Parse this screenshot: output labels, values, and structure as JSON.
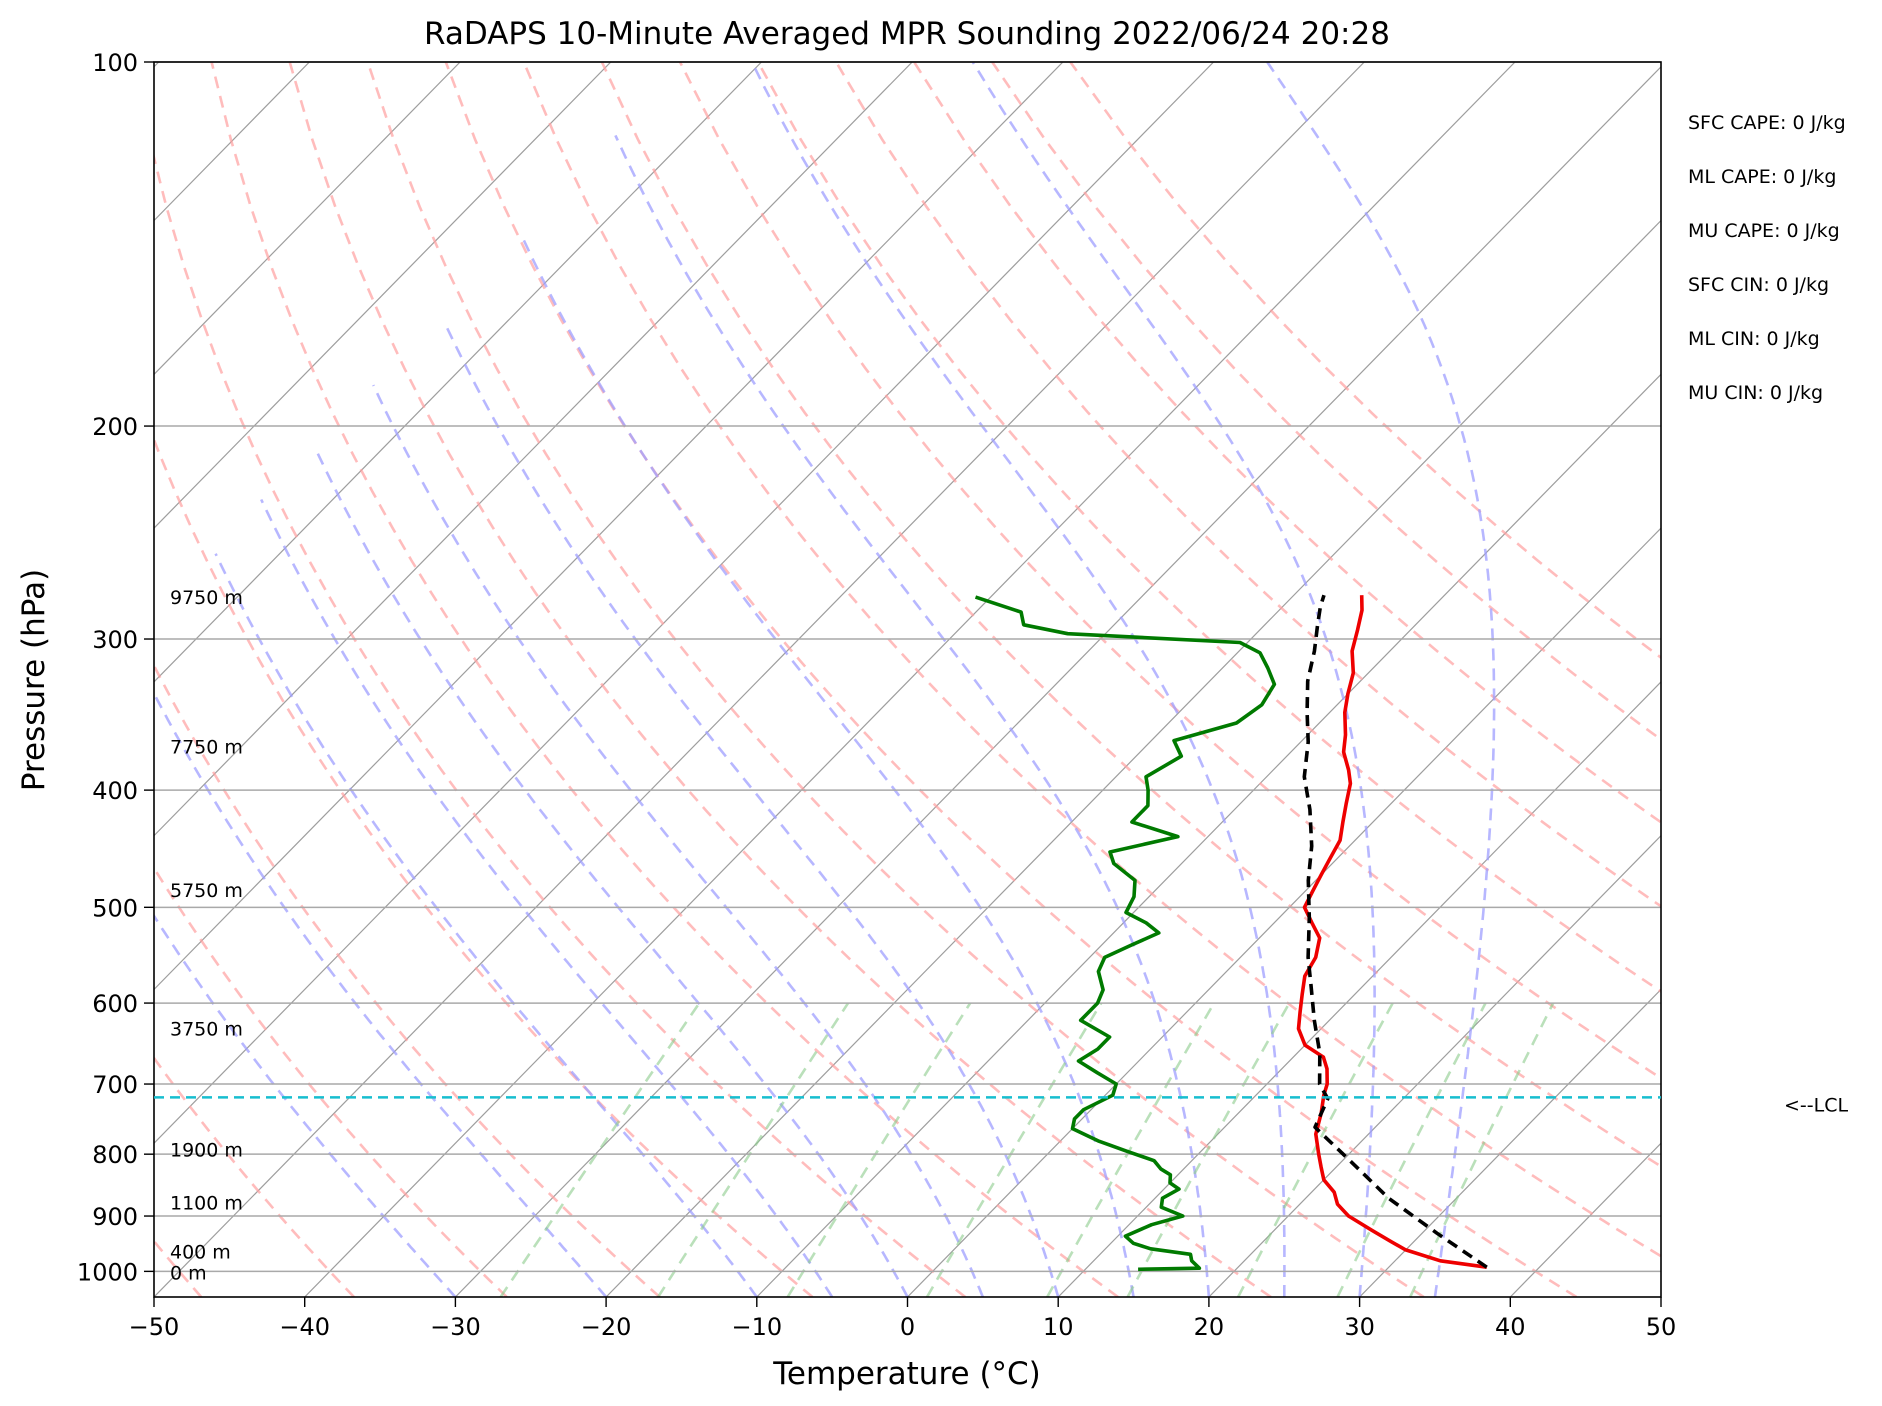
{
  "chart_data": {
    "type": "line",
    "subtype": "skew-t log-p sounding",
    "title": "RaDAPS 10-Minute Averaged MPR Sounding 2022/06/24 20:28",
    "xlabel": "Temperature (°C)",
    "ylabel": "Pressure (hPa)",
    "xlim": [
      -50,
      50
    ],
    "ylim": [
      1050,
      100
    ],
    "y_scale": "log",
    "x_ticks": [
      -50,
      -40,
      -30,
      -20,
      -10,
      0,
      10,
      20,
      30,
      40,
      50
    ],
    "x_tick_labels": [
      "−50",
      "−40",
      "−30",
      "−20",
      "−10",
      "0",
      "10",
      "20",
      "30",
      "40",
      "50"
    ],
    "y_ticks": [
      100,
      200,
      300,
      400,
      500,
      600,
      700,
      800,
      900,
      1000
    ],
    "y_tick_labels": [
      "100",
      "200",
      "300",
      "400",
      "500",
      "600",
      "700",
      "800",
      "900",
      "1000"
    ],
    "grid": true,
    "series": [
      {
        "role": "temperature",
        "color": "#ee0000",
        "points": [
          [
            36.5,
            992
          ],
          [
            33.0,
            980
          ],
          [
            30.0,
            960
          ],
          [
            28.5,
            945
          ],
          [
            26.5,
            925
          ],
          [
            24.0,
            900
          ],
          [
            22.5,
            880
          ],
          [
            21.5,
            860
          ],
          [
            20.0,
            840
          ],
          [
            19.0,
            820
          ],
          [
            18.0,
            800
          ],
          [
            16.5,
            770
          ],
          [
            15.5,
            740
          ],
          [
            14.5,
            715
          ],
          [
            14.0,
            700
          ],
          [
            13.0,
            680
          ],
          [
            12.0,
            665
          ],
          [
            10.0,
            650
          ],
          [
            8.5,
            630
          ],
          [
            7.5,
            610
          ],
          [
            6.5,
            590
          ],
          [
            5.5,
            570
          ],
          [
            5.0,
            550
          ],
          [
            4.0,
            530
          ],
          [
            2.5,
            515
          ],
          [
            1.0,
            500
          ],
          [
            0.5,
            485
          ],
          [
            0.0,
            470
          ],
          [
            -0.5,
            455
          ],
          [
            -1.0,
            440
          ],
          [
            -2.0,
            425
          ],
          [
            -3.0,
            410
          ],
          [
            -4.0,
            395
          ],
          [
            -5.0,
            385
          ],
          [
            -6.5,
            372
          ],
          [
            -7.5,
            360
          ],
          [
            -9.0,
            345
          ],
          [
            -10.0,
            333
          ],
          [
            -11.0,
            320
          ],
          [
            -12.5,
            307
          ],
          [
            -13.5,
            295
          ],
          [
            -14.5,
            284
          ],
          [
            -15.5,
            276
          ]
        ]
      },
      {
        "role": "dewpoint",
        "color": "#007a00",
        "points": [
          [
            13.5,
            996
          ],
          [
            17.5,
            994
          ],
          [
            16.5,
            980
          ],
          [
            16.0,
            968
          ],
          [
            13.0,
            958
          ],
          [
            11.5,
            948
          ],
          [
            10.5,
            935
          ],
          [
            11.5,
            915
          ],
          [
            13.0,
            900
          ],
          [
            11.0,
            885
          ],
          [
            10.5,
            870
          ],
          [
            11.0,
            855
          ],
          [
            10.0,
            845
          ],
          [
            9.5,
            832
          ],
          [
            8.5,
            823
          ],
          [
            7.5,
            810
          ],
          [
            5.0,
            795
          ],
          [
            2.5,
            780
          ],
          [
            0.0,
            762
          ],
          [
            -0.5,
            748
          ],
          [
            -0.5,
            735
          ],
          [
            0.5,
            715
          ],
          [
            0.0,
            700
          ],
          [
            -2.0,
            685
          ],
          [
            -4.0,
            670
          ],
          [
            -3.5,
            655
          ],
          [
            -3.5,
            640
          ],
          [
            -6.5,
            620
          ],
          [
            -6.5,
            600
          ],
          [
            -7.0,
            585
          ],
          [
            -8.5,
            565
          ],
          [
            -9.0,
            550
          ],
          [
            -8.0,
            537
          ],
          [
            -7.0,
            525
          ],
          [
            -8.5,
            515
          ],
          [
            -10.5,
            505
          ],
          [
            -11.0,
            490
          ],
          [
            -12.0,
            475
          ],
          [
            -14.5,
            460
          ],
          [
            -15.5,
            450
          ],
          [
            -12.0,
            437
          ],
          [
            -16.0,
            425
          ],
          [
            -16.0,
            412
          ],
          [
            -17.0,
            400
          ],
          [
            -18.0,
            390
          ],
          [
            -17.0,
            375
          ],
          [
            -18.5,
            364
          ],
          [
            -15.5,
            352
          ],
          [
            -15.0,
            340
          ],
          [
            -15.5,
            327
          ],
          [
            -17.0,
            317
          ],
          [
            -18.5,
            308
          ],
          [
            -20.5,
            302
          ],
          [
            -32.5,
            297
          ],
          [
            -36.0,
            292
          ],
          [
            -37.0,
            285
          ],
          [
            -41.0,
            277
          ]
        ]
      },
      {
        "role": "parcel-profile",
        "color": "#000000",
        "dashed": true,
        "points": [
          [
            36.5,
            992
          ],
          [
            31.0,
            930
          ],
          [
            25.5,
            870
          ],
          [
            20.5,
            810
          ],
          [
            16.0,
            760
          ],
          [
            15.0,
            720
          ],
          [
            13.5,
            700
          ],
          [
            11.5,
            660
          ],
          [
            9.0,
            620
          ],
          [
            6.5,
            580
          ],
          [
            4.5,
            550
          ],
          [
            2.0,
            510
          ],
          [
            -0.5,
            475
          ],
          [
            -2.5,
            445
          ],
          [
            -5.0,
            415
          ],
          [
            -7.5,
            390
          ],
          [
            -9.5,
            365
          ],
          [
            -11.5,
            345
          ],
          [
            -13.5,
            325
          ],
          [
            -15.0,
            307
          ],
          [
            -16.5,
            292
          ],
          [
            -17.5,
            282
          ],
          [
            -18.0,
            276
          ]
        ]
      }
    ],
    "lcl_pressure": 718,
    "lcl_label": "<--LCL",
    "height_labels": [
      {
        "text": "9750 m",
        "p": 277
      },
      {
        "text": "7750 m",
        "p": 368
      },
      {
        "text": "5750 m",
        "p": 484
      },
      {
        "text": "3750 m",
        "p": 630
      },
      {
        "text": "1900 m",
        "p": 793
      },
      {
        "text": "1100 m",
        "p": 877
      },
      {
        "text": "400 m",
        "p": 963
      },
      {
        "text": "0 m",
        "p": 1002
      }
    ],
    "parameters": [
      "SFC CAPE: 0 J/kg",
      "ML CAPE: 0 J/kg",
      "MU CAPE: 0 J/kg",
      "SFC CIN: 0 J/kg",
      "ML CIN: 0 J/kg",
      "MU CIN: 0 J/kg"
    ],
    "background": {
      "isotherms": [
        -170,
        -160,
        -150,
        -140,
        -130,
        -120,
        -110,
        -100,
        -90,
        -80,
        -70,
        -60,
        -50,
        -40,
        -30,
        -20,
        -10,
        0,
        10,
        20,
        30,
        40,
        50
      ],
      "dry_adiabats_theta_c": [
        -50,
        -40,
        -30,
        -20,
        -10,
        0,
        10,
        20,
        30,
        40,
        50,
        60,
        70,
        80,
        90,
        100,
        110,
        120
      ],
      "moist_adiabats_start_c": [
        -30,
        -20,
        -10,
        -5,
        0,
        5,
        10,
        15,
        20,
        25,
        30,
        35
      ],
      "mixing_ratio_g_per_kg": [
        0.4,
        1,
        2,
        4,
        7,
        10,
        16,
        24,
        32
      ]
    },
    "colors": {
      "grid": "#a9a9a9",
      "isotherm": "#8c8c8c",
      "dry_adiabat": "#ff9f9f",
      "moist_adiabat": "#9f9fff",
      "mixing_ratio": "#8ccc8c",
      "lcl": "#17becf"
    }
  }
}
